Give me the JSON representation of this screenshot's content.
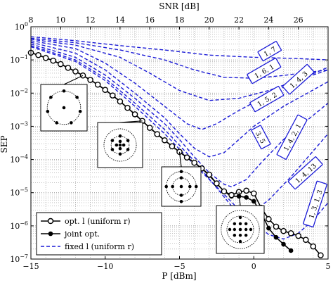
{
  "chart_data": {
    "type": "line",
    "xlabel": "P [dBm]",
    "x2label": "SNR [dB]",
    "ylabel": "SEP",
    "xlim": [
      -15,
      5
    ],
    "ylim_log10": [
      -7,
      0
    ],
    "x_ticks": [
      -15,
      -10,
      -5,
      0,
      5
    ],
    "x2_ticks": [
      8,
      10,
      12,
      14,
      16,
      18,
      20,
      22,
      24,
      26
    ],
    "x2_offset_db": 23,
    "y_ticks_exp": [
      0,
      -1,
      -2,
      -3,
      -4,
      -5,
      -6,
      -7
    ],
    "y_tick_labels": [
      "10^0",
      "10^-1",
      "10^-2",
      "10^-3",
      "10^-4",
      "10^-5",
      "10^-6",
      "10^-7"
    ],
    "grid": true,
    "legend_position": "bottom-left",
    "legend": [
      {
        "label": "opt. l (uniform r)",
        "style": "open-circle"
      },
      {
        "label": "joint opt.",
        "style": "filled-circle"
      },
      {
        "label": "fixed l (uniform r)",
        "style": "dashed-blue"
      }
    ],
    "series": [
      {
        "name": "opt. l (uniform r)",
        "color": "#000000",
        "marker": "open",
        "points": [
          [
            -15,
            0.165
          ],
          [
            -14.5,
            0.14
          ],
          [
            -14,
            0.115
          ],
          [
            -13.5,
            0.095
          ],
          [
            -13,
            0.075
          ],
          [
            -12.5,
            0.058
          ],
          [
            -12,
            0.045
          ],
          [
            -11.5,
            0.034
          ],
          [
            -11,
            0.025
          ],
          [
            -10.5,
            0.018
          ],
          [
            -10,
            0.0125
          ],
          [
            -9.5,
            0.0085
          ],
          [
            -9,
            0.0056
          ],
          [
            -8.5,
            0.0036
          ],
          [
            -8,
            0.0023
          ],
          [
            -7.5,
            0.00145
          ],
          [
            -7,
            0.0009
          ],
          [
            -6.5,
            0.00058
          ],
          [
            -6,
            0.00038
          ],
          [
            -5.5,
            0.00025
          ],
          [
            -5,
            0.00017
          ],
          [
            -4.5,
            0.000115
          ],
          [
            -4,
            8e-05
          ],
          [
            -3.5,
            5.4e-05
          ],
          [
            -3,
            3.5e-05
          ],
          [
            -2.5,
            1.9e-05
          ],
          [
            -2,
            1.1e-05
          ],
          [
            -1.5,
            8.5e-06
          ],
          [
            -1,
            1.05e-05
          ],
          [
            -0.5,
            1.15e-05
          ],
          [
            0,
            9.5e-06
          ],
          [
            0.5,
            3.5e-06
          ],
          [
            1,
            1.6e-06
          ],
          [
            1.5,
            9.5e-07
          ],
          [
            2,
            7e-07
          ],
          [
            2.5,
            6e-07
          ],
          [
            3,
            5e-07
          ],
          [
            3.5,
            3.8e-07
          ],
          [
            4,
            2.4e-07
          ],
          [
            4.5,
            1.3e-07
          ]
        ]
      },
      {
        "name": "joint opt.",
        "color": "#000000",
        "marker": "filled",
        "points": [
          [
            -15,
            0.165
          ],
          [
            -14.5,
            0.14
          ],
          [
            -14,
            0.115
          ],
          [
            -13.5,
            0.095
          ],
          [
            -13,
            0.075
          ],
          [
            -12.5,
            0.058
          ],
          [
            -12,
            0.045
          ],
          [
            -11.5,
            0.034
          ],
          [
            -11,
            0.025
          ],
          [
            -10.5,
            0.018
          ],
          [
            -10,
            0.0125
          ],
          [
            -9.5,
            0.0085
          ],
          [
            -9,
            0.0056
          ],
          [
            -8.5,
            0.0036
          ],
          [
            -8,
            0.0023
          ],
          [
            -7.5,
            0.00145
          ],
          [
            -7,
            0.0009
          ],
          [
            -6.5,
            0.00058
          ],
          [
            -6,
            0.00038
          ],
          [
            -5.5,
            0.00025
          ],
          [
            -5,
            0.00017
          ],
          [
            -4.5,
            0.000115
          ],
          [
            -4,
            8e-05
          ],
          [
            -3.5,
            5.4e-05
          ],
          [
            -3,
            3.3e-05
          ],
          [
            -2.5,
            1.9e-05
          ],
          [
            -2,
            1.1e-05
          ],
          [
            -1.5,
            7.8e-06
          ],
          [
            -1,
            7.8e-06
          ],
          [
            -0.5,
            7.2e-06
          ],
          [
            0,
            5.5e-06
          ],
          [
            0.5,
            2.5e-06
          ],
          [
            1,
            8.5e-07
          ],
          [
            1.5,
            4.5e-07
          ],
          [
            2,
            2.8e-07
          ],
          [
            2.5,
            1.8e-07
          ]
        ]
      },
      {
        "name": "",
        "color": "#1a1ad6",
        "dashed": true,
        "points": [
          [
            -15,
            0.5
          ],
          [
            -12,
            0.38
          ],
          [
            -9,
            0.27
          ],
          [
            -6,
            0.2
          ],
          [
            -3,
            0.14
          ],
          [
            0,
            0.12
          ],
          [
            3,
            0.11
          ],
          [
            5,
            0.1
          ]
        ]
      },
      {
        "name": "",
        "color": "#1a1ad6",
        "dashed": true,
        "points": [
          [
            -15,
            0.45
          ],
          [
            -12,
            0.33
          ],
          [
            -9,
            0.2
          ],
          [
            -6,
            0.1
          ],
          [
            -4,
            0.05
          ],
          [
            -2,
            0.03
          ],
          [
            0,
            0.028
          ],
          [
            2,
            0.034
          ],
          [
            5,
            0.05
          ]
        ]
      },
      {
        "name": "",
        "color": "#1a1ad6",
        "dashed": true,
        "points": [
          [
            -15,
            0.42
          ],
          [
            -12,
            0.28
          ],
          [
            -9,
            0.12
          ],
          [
            -7,
            0.04
          ],
          [
            -5,
            0.012
          ],
          [
            -3,
            0.006
          ],
          [
            -1,
            0.007
          ],
          [
            1,
            0.012
          ],
          [
            3,
            0.025
          ],
          [
            5,
            0.05
          ]
        ]
      },
      {
        "name": "",
        "color": "#1a1ad6",
        "dashed": true,
        "points": [
          [
            -15,
            0.38
          ],
          [
            -12,
            0.22
          ],
          [
            -10,
            0.08
          ],
          [
            -8,
            0.02
          ],
          [
            -6,
            0.004
          ],
          [
            -4.5,
            0.0012
          ],
          [
            -3.5,
            0.0008
          ],
          [
            -2.5,
            0.0012
          ],
          [
            -1,
            0.003
          ],
          [
            1,
            0.009
          ],
          [
            3,
            0.025
          ],
          [
            5,
            0.06
          ]
        ]
      },
      {
        "name": "",
        "color": "#1a1ad6",
        "dashed": true,
        "points": [
          [
            -15,
            0.34
          ],
          [
            -12,
            0.16
          ],
          [
            -10,
            0.05
          ],
          [
            -8,
            0.01
          ],
          [
            -6,
            0.0018
          ],
          [
            -5,
            0.0006
          ],
          [
            -4,
            0.00022
          ],
          [
            -3,
            0.00012
          ],
          [
            -2,
            0.00016
          ],
          [
            -1,
            0.0004
          ],
          [
            0,
            0.001
          ],
          [
            2,
            0.004
          ],
          [
            5,
            0.022
          ]
        ]
      },
      {
        "name": "",
        "color": "#1a1ad6",
        "dashed": true,
        "points": [
          [
            -15,
            0.3
          ],
          [
            -12,
            0.12
          ],
          [
            -10,
            0.035
          ],
          [
            -8,
            0.007
          ],
          [
            -6,
            0.0012
          ],
          [
            -5,
            0.0004
          ],
          [
            -4,
            0.00012
          ],
          [
            -3,
            4e-05
          ],
          [
            -2,
            1.8e-05
          ],
          [
            -1.5,
            1.5e-05
          ],
          [
            -0.5,
            2.5e-05
          ],
          [
            0.5,
            8e-05
          ],
          [
            2,
            0.0004
          ],
          [
            5,
            0.005
          ]
        ]
      },
      {
        "name": "",
        "color": "#1a1ad6",
        "dashed": true,
        "points": [
          [
            -15,
            0.27
          ],
          [
            -12,
            0.1
          ],
          [
            -10,
            0.028
          ],
          [
            -8,
            0.005
          ],
          [
            -6,
            0.0008
          ],
          [
            -4,
            9e-05
          ],
          [
            -2.5,
            1.4e-05
          ],
          [
            -1.5,
            4e-06
          ],
          [
            -0.5,
            2.5e-06
          ],
          [
            0,
            2.8e-06
          ],
          [
            1,
            6e-06
          ],
          [
            2.5,
            3e-05
          ],
          [
            5,
            0.0006
          ]
        ]
      },
      {
        "name": "",
        "color": "#1a1ad6",
        "dashed": true,
        "points": [
          [
            -15,
            0.25
          ],
          [
            -12,
            0.09
          ],
          [
            -10,
            0.024
          ],
          [
            -8,
            0.004
          ],
          [
            -6,
            0.0006
          ],
          [
            -4,
            7e-05
          ],
          [
            -2,
            9e-06
          ],
          [
            -0.5,
            1.8e-06
          ],
          [
            1,
            5.5e-07
          ],
          [
            2,
            4e-07
          ],
          [
            3,
            6e-07
          ],
          [
            4,
            1.5e-06
          ],
          [
            5,
            5e-06
          ]
        ]
      }
    ],
    "curve_labels": [
      "1, 7",
      "1, 6, 1",
      "1, 5, 2",
      "1, 4, 3",
      "3, 5",
      "1, 4, 2, 1",
      "1, 4, 13",
      "1, 3, 1, 3"
    ],
    "constellation_insets": 5
  }
}
